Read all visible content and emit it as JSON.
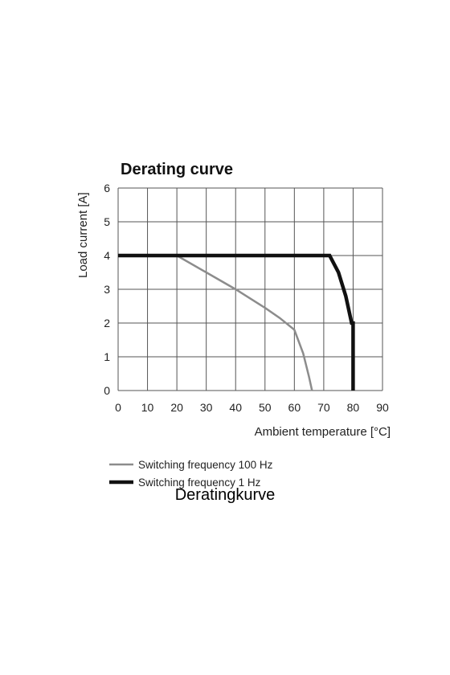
{
  "chart_data": {
    "type": "line",
    "title": "Derating curve",
    "xlabel": "Ambient temperature [°C]",
    "ylabel": "Load current [A]",
    "xlim": [
      0,
      90
    ],
    "ylim": [
      0,
      6
    ],
    "x_ticks": [
      0,
      10,
      20,
      30,
      40,
      50,
      60,
      70,
      80,
      90
    ],
    "y_ticks": [
      0,
      1,
      2,
      3,
      4,
      5,
      6
    ],
    "grid": true,
    "legend_position": "bottom",
    "series": [
      {
        "name": "Switching frequency 100 Hz",
        "color": "#8c8c8c",
        "points": [
          [
            0,
            4
          ],
          [
            20,
            4
          ],
          [
            30,
            3.5
          ],
          [
            40,
            3.0
          ],
          [
            50,
            2.45
          ],
          [
            55,
            2.15
          ],
          [
            60,
            1.8
          ],
          [
            63,
            1.1
          ],
          [
            65,
            0.4
          ],
          [
            66,
            0
          ]
        ]
      },
      {
        "name": "Switching frequency 1 Hz",
        "color": "#111111",
        "points": [
          [
            0,
            4
          ],
          [
            72,
            4
          ],
          [
            75,
            3.5
          ],
          [
            77.5,
            2.8
          ],
          [
            79.5,
            2.0
          ],
          [
            80,
            2.0
          ],
          [
            80,
            0
          ]
        ]
      }
    ]
  },
  "caption": "Deratingkurve"
}
